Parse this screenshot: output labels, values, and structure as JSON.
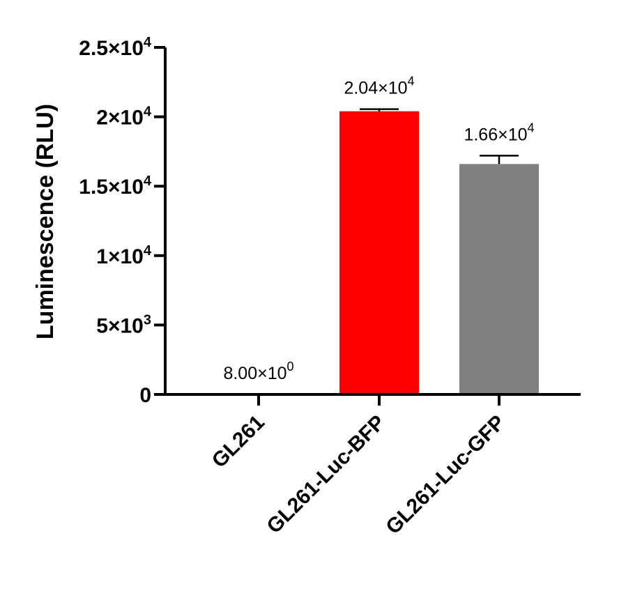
{
  "chart_data": {
    "type": "bar",
    "ylabel": "Luminescence (RLU)",
    "xlabel": "",
    "ylim": [
      0,
      25000
    ],
    "yticks": [
      {
        "value": 0,
        "mantissa": "0",
        "exp": ""
      },
      {
        "value": 5000,
        "mantissa": "5×10",
        "exp": "3"
      },
      {
        "value": 10000,
        "mantissa": "1×10",
        "exp": "4"
      },
      {
        "value": 15000,
        "mantissa": "1.5×10",
        "exp": "4"
      },
      {
        "value": 20000,
        "mantissa": "2×10",
        "exp": "4"
      },
      {
        "value": 25000,
        "mantissa": "2.5×10",
        "exp": "4"
      }
    ],
    "categories": [
      "GL261",
      "GL261-Luc-BFP",
      "GL261-Luc-GFP"
    ],
    "values": [
      8,
      20400,
      16600
    ],
    "errors": [
      0,
      150,
      600
    ],
    "colors": [
      "#ffffff",
      "#ff0000",
      "#808080"
    ],
    "data_labels": [
      {
        "mantissa": "8.00×10",
        "exp": "0"
      },
      {
        "mantissa": "2.04×10",
        "exp": "4"
      },
      {
        "mantissa": "1.66×10",
        "exp": "4"
      }
    ],
    "grid": false,
    "legend": "none"
  }
}
